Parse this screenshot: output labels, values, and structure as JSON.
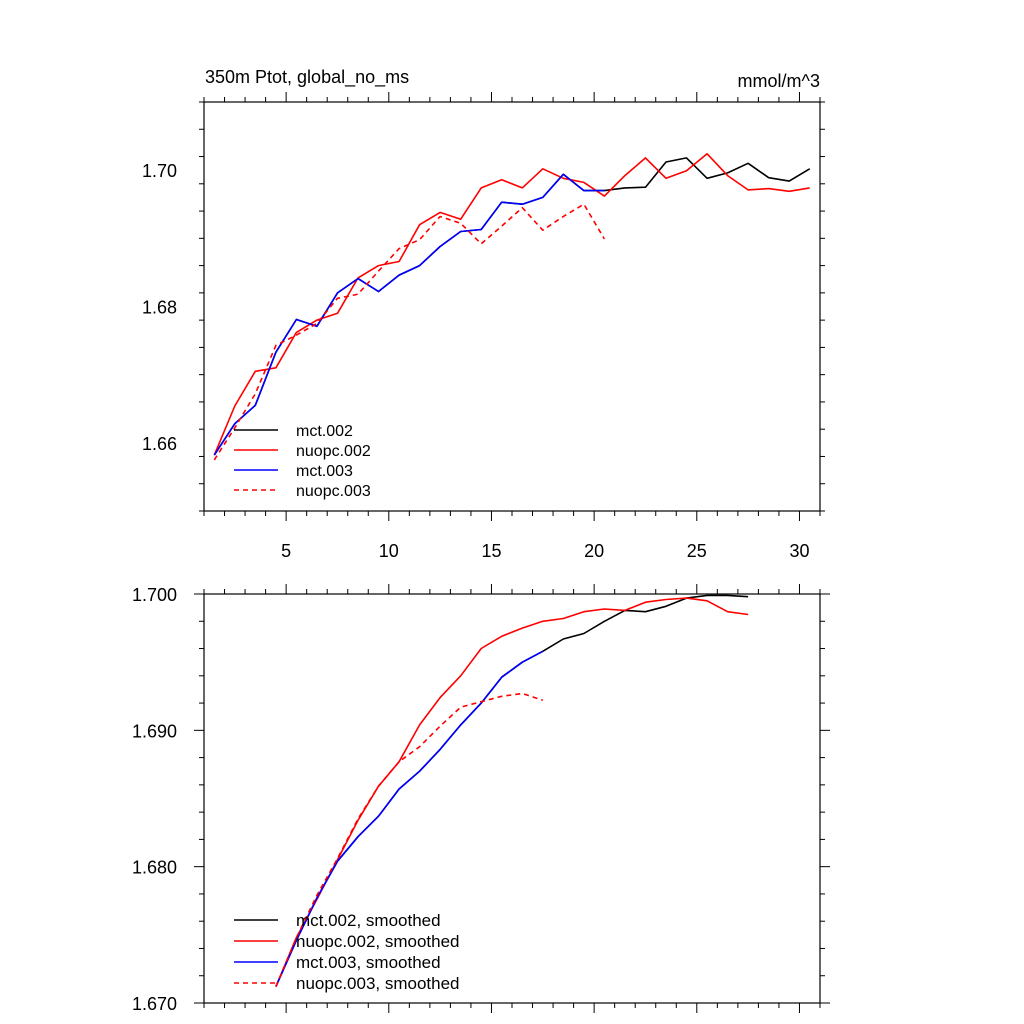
{
  "chart_data": [
    {
      "type": "line",
      "title": "350m Ptot, global_no_ms",
      "units": "mmol/m^3",
      "xlim": [
        1,
        31
      ],
      "ylim": [
        1.65,
        1.71
      ],
      "xticks": [
        5,
        10,
        15,
        20,
        25,
        30
      ],
      "xtick_labels": [
        "5",
        "10",
        "15",
        "20",
        "25",
        "30"
      ],
      "yticks": [
        1.66,
        1.68,
        1.7
      ],
      "ytick_labels": [
        "1.66",
        "1.68",
        "1.70"
      ],
      "legend_position": "bottom-left",
      "series": [
        {
          "name": "mct.002",
          "color": "#000000",
          "dash": false,
          "x": [
            1.5,
            2.5,
            3.5,
            4.5,
            5.5,
            6.5,
            7.5,
            8.5,
            9.5,
            10.5,
            11.5,
            12.5,
            13.5,
            14.5,
            15.5,
            16.5,
            17.5,
            18.5,
            19.5,
            20.5,
            21.5,
            22.5,
            23.5,
            24.5,
            25.5,
            26.5,
            27.5,
            28.5,
            29.5,
            30.5
          ],
          "y": [
            1.6582,
            1.6628,
            1.6655,
            1.6733,
            1.6781,
            1.6771,
            1.682,
            1.6841,
            1.6822,
            1.6846,
            1.686,
            1.6888,
            1.691,
            1.6913,
            1.6953,
            1.695,
            1.696,
            1.6994,
            1.697,
            1.697,
            1.6974,
            1.6975,
            1.7012,
            1.7018,
            1.6988,
            1.6996,
            1.701,
            1.6989,
            1.6984,
            1.7002
          ]
        },
        {
          "name": "nuopc.002",
          "color": "#ff0000",
          "dash": false,
          "x": [
            1.5,
            2.5,
            3.5,
            4.5,
            5.5,
            6.5,
            7.5,
            8.5,
            9.5,
            10.5,
            11.5,
            12.5,
            13.5,
            14.5,
            15.5,
            16.5,
            17.5,
            18.5,
            19.5,
            20.5,
            21.5,
            22.5,
            23.5,
            24.5,
            25.5,
            26.5,
            27.5,
            28.5,
            29.5,
            30.5
          ],
          "y": [
            1.6582,
            1.6654,
            1.6705,
            1.671,
            1.6762,
            1.678,
            1.679,
            1.6842,
            1.686,
            1.6866,
            1.692,
            1.6938,
            1.6928,
            1.6974,
            1.6986,
            1.6974,
            1.7002,
            1.6988,
            1.6982,
            1.6962,
            1.6992,
            1.7018,
            1.6988,
            1.6999,
            1.7024,
            1.6992,
            1.6971,
            1.6973,
            1.6969,
            1.6974
          ]
        },
        {
          "name": "mct.003",
          "color": "#0000ff",
          "dash": false,
          "x": [
            1.5,
            2.5,
            3.5,
            4.5,
            5.5,
            6.5,
            7.5,
            8.5,
            9.5,
            10.5,
            11.5,
            12.5,
            13.5,
            14.5,
            15.5,
            16.5,
            17.5,
            18.5,
            19.5,
            20.5
          ],
          "y": [
            1.6582,
            1.6628,
            1.6655,
            1.6733,
            1.6781,
            1.6771,
            1.682,
            1.6841,
            1.6822,
            1.6846,
            1.686,
            1.6888,
            1.691,
            1.6913,
            1.6953,
            1.695,
            1.696,
            1.6994,
            1.697,
            1.697
          ]
        },
        {
          "name": "nuopc.003",
          "color": "#ff0000",
          "dash": true,
          "x": [
            1.5,
            2.5,
            3.5,
            4.5,
            5.5,
            6.5,
            7.5,
            8.5,
            9.5,
            10.5,
            11.5,
            12.5,
            13.5,
            14.5,
            15.5,
            16.5,
            17.5,
            18.5,
            19.5,
            20.5
          ],
          "y": [
            1.6575,
            1.6622,
            1.6672,
            1.6743,
            1.6758,
            1.6775,
            1.6812,
            1.6818,
            1.6852,
            1.6885,
            1.6898,
            1.6932,
            1.6922,
            1.6892,
            1.6918,
            1.6945,
            1.6912,
            1.6932,
            1.695,
            1.6899
          ]
        }
      ]
    },
    {
      "type": "line",
      "xlim": [
        1,
        31
      ],
      "ylim": [
        1.67,
        1.7
      ],
      "xticks": [
        5,
        10,
        15,
        20,
        25,
        30
      ],
      "yticks": [
        1.67,
        1.68,
        1.69,
        1.7
      ],
      "ytick_labels": [
        "1.670",
        "1.680",
        "1.690",
        "1.700"
      ],
      "legend_position": "bottom-left",
      "series": [
        {
          "name": "mct.002, smoothed",
          "color": "#000000",
          "dash": false,
          "x": [
            4.5,
            5.5,
            6.5,
            7.5,
            8.5,
            9.5,
            10.5,
            11.5,
            12.5,
            13.5,
            14.5,
            15.5,
            16.5,
            17.5,
            18.5,
            19.5,
            20.5,
            21.5,
            22.5,
            23.5,
            24.5,
            25.5,
            26.5,
            27.5
          ],
          "y": [
            1.6712,
            1.6746,
            1.6777,
            1.6804,
            1.6822,
            1.6837,
            1.6857,
            1.687,
            1.6886,
            1.6904,
            1.692,
            1.6939,
            1.695,
            1.6958,
            1.6967,
            1.6971,
            1.698,
            1.6988,
            1.6987,
            1.6991,
            1.6997,
            1.6999,
            1.6999,
            1.6998
          ]
        },
        {
          "name": "nuopc.002, smoothed",
          "color": "#ff0000",
          "dash": false,
          "x": [
            4.5,
            5.5,
            6.5,
            7.5,
            8.5,
            9.5,
            10.5,
            11.5,
            12.5,
            13.5,
            14.5,
            15.5,
            16.5,
            17.5,
            18.5,
            19.5,
            20.5,
            21.5,
            22.5,
            23.5,
            24.5,
            25.5,
            26.5,
            27.5
          ],
          "y": [
            1.6712,
            1.6748,
            1.6776,
            1.6805,
            1.6834,
            1.6859,
            1.6877,
            1.6904,
            1.6924,
            1.694,
            1.696,
            1.6969,
            1.6975,
            1.698,
            1.6982,
            1.6987,
            1.6989,
            1.6988,
            1.6994,
            1.6996,
            1.6997,
            1.6995,
            1.6987,
            1.6985
          ]
        },
        {
          "name": "mct.003, smoothed",
          "color": "#0000ff",
          "dash": false,
          "x": [
            4.5,
            5.5,
            6.5,
            7.5,
            8.5,
            9.5,
            10.5,
            11.5,
            12.5,
            13.5,
            14.5,
            15.5,
            16.5,
            17.5
          ],
          "y": [
            1.6712,
            1.6746,
            1.6777,
            1.6804,
            1.6822,
            1.6837,
            1.6857,
            1.687,
            1.6886,
            1.6904,
            1.692,
            1.6939,
            1.695,
            1.6958
          ]
        },
        {
          "name": "nuopc.003, smoothed",
          "color": "#ff0000",
          "dash": true,
          "x": [
            4.5,
            5.5,
            6.5,
            7.5,
            8.5,
            9.5,
            10.5,
            11.5,
            12.5,
            13.5,
            14.5,
            15.5,
            16.5,
            17.5
          ],
          "y": [
            1.6712,
            1.6748,
            1.6779,
            1.6806,
            1.6835,
            1.6859,
            1.6877,
            1.6888,
            1.6903,
            1.6917,
            1.6921,
            1.6925,
            1.6927,
            1.6922
          ]
        }
      ]
    }
  ]
}
